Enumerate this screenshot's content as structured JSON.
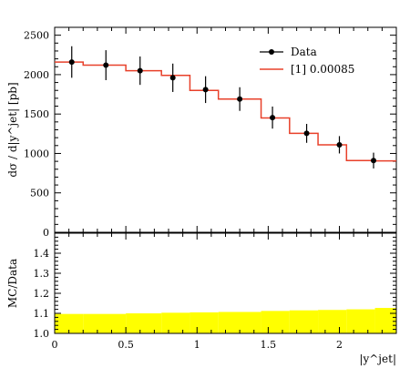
{
  "chart_data": [
    {
      "type": "line",
      "panel": "main",
      "ylabel": "dσ / d|y^jet| [pb]",
      "xlim": [
        0,
        2.4
      ],
      "ylim": [
        0,
        2600
      ],
      "yticks": [
        0,
        500,
        1000,
        1500,
        2000,
        2500
      ],
      "ytick_labels": [
        "0",
        "500",
        "1000",
        "1500",
        "2000",
        "2500"
      ],
      "legend_position": "top-right",
      "legend": [
        {
          "label": "Data",
          "style": "black points with error bars"
        },
        {
          "label": "[1] 0.00085",
          "style": "red step line"
        }
      ],
      "bin_edges": [
        0.0,
        0.2,
        0.5,
        0.75,
        0.95,
        1.15,
        1.45,
        1.65,
        1.85,
        2.05,
        2.25,
        2.4
      ],
      "series": [
        {
          "name": "Data",
          "color": "#000000",
          "x": [
            0.12,
            0.36,
            0.6,
            0.83,
            1.06,
            1.3,
            1.53,
            1.77,
            2.0,
            2.24
          ],
          "y": [
            2160,
            2120,
            2050,
            1960,
            1810,
            1690,
            1455,
            1255,
            1110,
            910
          ],
          "y_err": [
            200,
            190,
            180,
            180,
            170,
            150,
            140,
            120,
            110,
            100
          ]
        },
        {
          "name": "[1] 0.00085",
          "color": "#e8402a",
          "values": [
            2160,
            2120,
            2050,
            1990,
            1800,
            1690,
            1450,
            1255,
            1110,
            910,
            905
          ]
        }
      ]
    },
    {
      "type": "area",
      "panel": "ratio",
      "ylabel": "MC/Data",
      "xlabel": "|y^jet|",
      "xlim": [
        0,
        2.4
      ],
      "ylim": [
        1.0,
        1.5
      ],
      "xticks": [
        0,
        0.5,
        1,
        1.5,
        2
      ],
      "xtick_labels": [
        "0",
        "0.5",
        "1",
        "1.5",
        "2"
      ],
      "yticks": [
        1.0,
        1.1,
        1.2,
        1.3,
        1.4
      ],
      "ytick_labels": [
        "1.0",
        "1.1",
        "1.2",
        "1.3",
        "1.4"
      ],
      "band_color": "#ffff00",
      "band_lower": [
        1.0,
        1.0,
        1.0,
        1.0,
        1.0,
        1.0,
        1.0,
        1.0,
        1.0,
        1.0,
        1.0
      ],
      "band_upper": [
        1.097,
        1.097,
        1.1,
        1.103,
        1.105,
        1.107,
        1.112,
        1.115,
        1.117,
        1.12,
        1.127
      ]
    }
  ]
}
